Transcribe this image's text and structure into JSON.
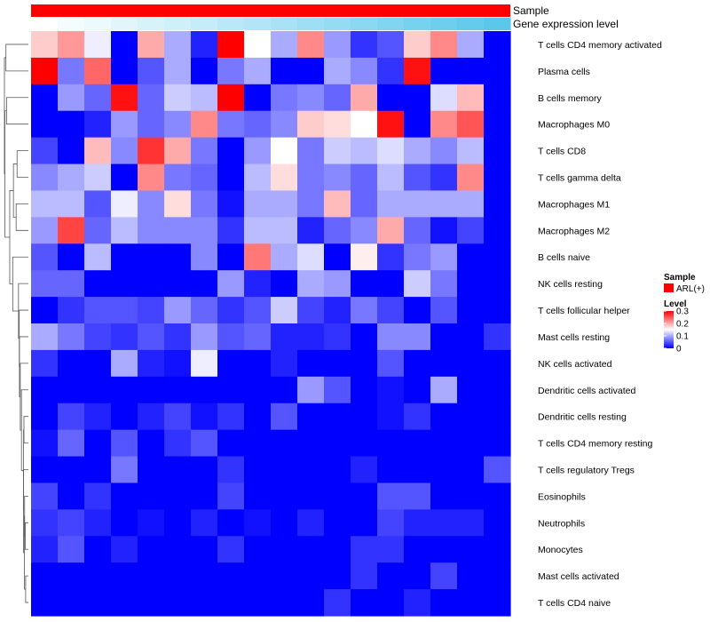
{
  "chart_data": {
    "type": "heatmap",
    "title": "",
    "annotations": [
      {
        "name": "Sample",
        "kind": "categorical"
      },
      {
        "name": "Gene expression level",
        "kind": "gradient"
      }
    ],
    "legend": {
      "sample_title": "Sample",
      "sample_entry": "ARL(+)",
      "sample_color": "#ff0000",
      "level_title": "Level",
      "level_ticks": [
        "0.3",
        "0.2",
        "0.1",
        "0"
      ],
      "level_tick_values": [
        0.3,
        0.2,
        0.1,
        0
      ],
      "colors": {
        "low": "#0000ff",
        "mid": "#ffffff",
        "high": "#ff0000"
      },
      "range": [
        0,
        0.3
      ]
    },
    "expression_gradient": {
      "from": "#ffffff",
      "to": "#5bc8ea"
    },
    "column_count": 18,
    "rows": [
      "T cells CD4 memory activated",
      "Plasma cells",
      "B cells memory",
      "Macrophages M0",
      "T cells CD8",
      "T cells gamma delta",
      "Macrophages M1",
      "Macrophages M2",
      "B cells naive",
      "NK cells resting",
      "T cells follicular helper",
      "Mast cells resting",
      "NK cells activated",
      "Dendritic cells activated",
      "Dendritic cells resting",
      "T cells CD4 memory resting",
      "T cells regulatory  Tregs",
      "Eosinophils",
      "Neutrophils",
      "Monocytes",
      "Mast cells activated",
      "T cells CD4 naive"
    ],
    "values": [
      [
        0.18,
        0.21,
        0.14,
        0.0,
        0.2,
        0.1,
        0.02,
        0.3,
        0.15,
        0.1,
        0.22,
        0.09,
        0.03,
        0.05,
        0.18,
        0.22,
        0.1,
        0.0
      ],
      [
        0.3,
        0.07,
        0.24,
        0.0,
        0.05,
        0.1,
        0.0,
        0.07,
        0.1,
        0.0,
        0.0,
        0.1,
        0.08,
        0.03,
        0.29,
        0.0,
        0.0,
        0.0
      ],
      [
        0.0,
        0.09,
        0.06,
        0.29,
        0.06,
        0.12,
        0.11,
        0.3,
        0.0,
        0.07,
        0.08,
        0.06,
        0.2,
        0.0,
        0.0,
        0.13,
        0.19,
        0.0
      ],
      [
        0.0,
        0.0,
        0.02,
        0.09,
        0.06,
        0.08,
        0.22,
        0.07,
        0.06,
        0.08,
        0.18,
        0.17,
        0.15,
        0.29,
        0.0,
        0.22,
        0.25,
        0.0
      ],
      [
        0.04,
        0.0,
        0.19,
        0.08,
        0.27,
        0.2,
        0.07,
        0.0,
        0.09,
        0.15,
        0.07,
        0.12,
        0.11,
        0.13,
        0.1,
        0.08,
        0.11,
        0.0
      ],
      [
        0.08,
        0.1,
        0.12,
        0.0,
        0.22,
        0.07,
        0.06,
        0.0,
        0.11,
        0.17,
        0.07,
        0.08,
        0.06,
        0.11,
        0.05,
        0.03,
        0.22,
        0.0
      ],
      [
        0.11,
        0.11,
        0.05,
        0.14,
        0.08,
        0.17,
        0.07,
        0.01,
        0.1,
        0.1,
        0.07,
        0.19,
        0.06,
        0.1,
        0.1,
        0.1,
        0.1,
        0.0
      ],
      [
        0.09,
        0.26,
        0.06,
        0.11,
        0.08,
        0.08,
        0.08,
        0.03,
        0.11,
        0.11,
        0.02,
        0.06,
        0.08,
        0.2,
        0.06,
        0.01,
        0.04,
        0.0
      ],
      [
        0.05,
        0.0,
        0.11,
        0.0,
        0.0,
        0.0,
        0.08,
        0.0,
        0.23,
        0.1,
        0.13,
        0.0,
        0.16,
        0.03,
        0.07,
        0.09,
        0.0,
        0.0
      ],
      [
        0.06,
        0.06,
        0.0,
        0.0,
        0.0,
        0.0,
        0.0,
        0.09,
        0.02,
        0.0,
        0.1,
        0.09,
        0.0,
        0.0,
        0.12,
        0.07,
        0.0,
        0.0
      ],
      [
        0.0,
        0.03,
        0.05,
        0.05,
        0.04,
        0.09,
        0.06,
        0.03,
        0.05,
        0.12,
        0.04,
        0.02,
        0.07,
        0.04,
        0.0,
        0.05,
        0.0,
        0.0
      ],
      [
        0.1,
        0.07,
        0.04,
        0.03,
        0.05,
        0.03,
        0.09,
        0.05,
        0.06,
        0.02,
        0.02,
        0.03,
        0.0,
        0.08,
        0.08,
        0.0,
        0.0,
        0.03
      ],
      [
        0.03,
        0.0,
        0.0,
        0.1,
        0.02,
        0.01,
        0.14,
        0.0,
        0.0,
        0.02,
        0.0,
        0.0,
        0.0,
        0.05,
        0.0,
        0.0,
        0.0,
        0.0
      ],
      [
        0.0,
        0.0,
        0.0,
        0.0,
        0.0,
        0.0,
        0.0,
        0.0,
        0.0,
        0.0,
        0.09,
        0.05,
        0.0,
        0.01,
        0.0,
        0.1,
        0.0,
        0.0
      ],
      [
        0.0,
        0.04,
        0.02,
        0.0,
        0.02,
        0.04,
        0.01,
        0.03,
        0.0,
        0.05,
        0.0,
        0.0,
        0.0,
        0.01,
        0.03,
        0.0,
        0.0,
        0.0
      ],
      [
        0.01,
        0.06,
        0.0,
        0.05,
        0.0,
        0.03,
        0.05,
        0.0,
        0.0,
        0.0,
        0.0,
        0.0,
        0.0,
        0.0,
        0.0,
        0.0,
        0.0,
        0.0
      ],
      [
        0.0,
        0.0,
        0.0,
        0.07,
        0.0,
        0.0,
        0.0,
        0.03,
        0.0,
        0.0,
        0.0,
        0.0,
        0.02,
        0.0,
        0.0,
        0.0,
        0.0,
        0.05
      ],
      [
        0.04,
        0.0,
        0.03,
        0.0,
        0.0,
        0.0,
        0.0,
        0.04,
        0.0,
        0.0,
        0.0,
        0.0,
        0.0,
        0.05,
        0.05,
        0.0,
        0.0,
        0.0
      ],
      [
        0.03,
        0.04,
        0.02,
        0.0,
        0.01,
        0.0,
        0.02,
        0.0,
        0.01,
        0.0,
        0.02,
        0.0,
        0.0,
        0.04,
        0.02,
        0.02,
        0.02,
        0.0
      ],
      [
        0.02,
        0.05,
        0.0,
        0.02,
        0.0,
        0.0,
        0.0,
        0.03,
        0.0,
        0.0,
        0.0,
        0.0,
        0.03,
        0.03,
        0.0,
        0.0,
        0.0,
        0.0
      ],
      [
        0.0,
        0.0,
        0.0,
        0.0,
        0.0,
        0.0,
        0.0,
        0.0,
        0.0,
        0.0,
        0.0,
        0.0,
        0.03,
        0.0,
        0.0,
        0.04,
        0.0,
        0.0
      ],
      [
        0.0,
        0.0,
        0.0,
        0.0,
        0.0,
        0.0,
        0.0,
        0.0,
        0.0,
        0.0,
        0.0,
        0.03,
        0.0,
        0.0,
        0.02,
        0.0,
        0.0,
        0.0
      ]
    ]
  }
}
